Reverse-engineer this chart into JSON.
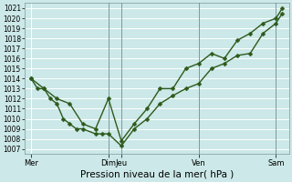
{
  "background_color": "#cce8e8",
  "plot_bg_color": "#cce8e8",
  "grid_color": "#ffffff",
  "line_color": "#2d5a1b",
  "marker_color": "#2d5a1b",
  "ylim": [
    1006.5,
    1021.5
  ],
  "yticks": [
    1007,
    1008,
    1009,
    1010,
    1011,
    1012,
    1013,
    1014,
    1015,
    1016,
    1017,
    1018,
    1019,
    1020,
    1021
  ],
  "xlabel": "Pression niveau de la mer( hPa )",
  "xtick_labels": [
    "Mer",
    "Dim",
    "Jeu",
    "Ven",
    "Sam"
  ],
  "xtick_positions": [
    0,
    6,
    7,
    13,
    19
  ],
  "vline_positions": [
    6,
    7,
    13,
    19
  ],
  "xlim": [
    -0.5,
    20
  ],
  "series1_x": [
    0,
    0.5,
    1,
    1.5,
    2,
    2.5,
    3,
    3.5,
    4,
    5,
    5.5,
    6,
    7,
    8,
    9,
    10,
    11,
    12,
    13,
    14,
    15,
    16,
    17,
    18,
    19,
    19.5
  ],
  "series1_y": [
    1014,
    1013,
    1013,
    1012,
    1011.5,
    1010,
    1009.5,
    1009,
    1009,
    1008.5,
    1008.5,
    1008.5,
    1007.3,
    1009,
    1010,
    1011.5,
    1012.3,
    1013,
    1013.5,
    1015,
    1015.5,
    1016.3,
    1016.5,
    1018.5,
    1019.5,
    1020.5
  ],
  "series2_x": [
    0,
    1,
    2,
    3,
    4,
    5,
    6,
    7,
    8,
    9,
    10,
    11,
    12,
    13,
    14,
    15,
    16,
    17,
    18,
    19,
    19.5
  ],
  "series2_y": [
    1014,
    1013,
    1012,
    1011.5,
    1009.5,
    1009,
    1012,
    1007.8,
    1009.5,
    1011,
    1013,
    1013,
    1015,
    1015.5,
    1016.5,
    1016,
    1017.8,
    1018.5,
    1019.5,
    1020,
    1021
  ],
  "marker_size": 2.5,
  "line_width": 1.0,
  "ytick_fontsize": 5.5,
  "xtick_fontsize": 6.0,
  "xlabel_fontsize": 7.5
}
